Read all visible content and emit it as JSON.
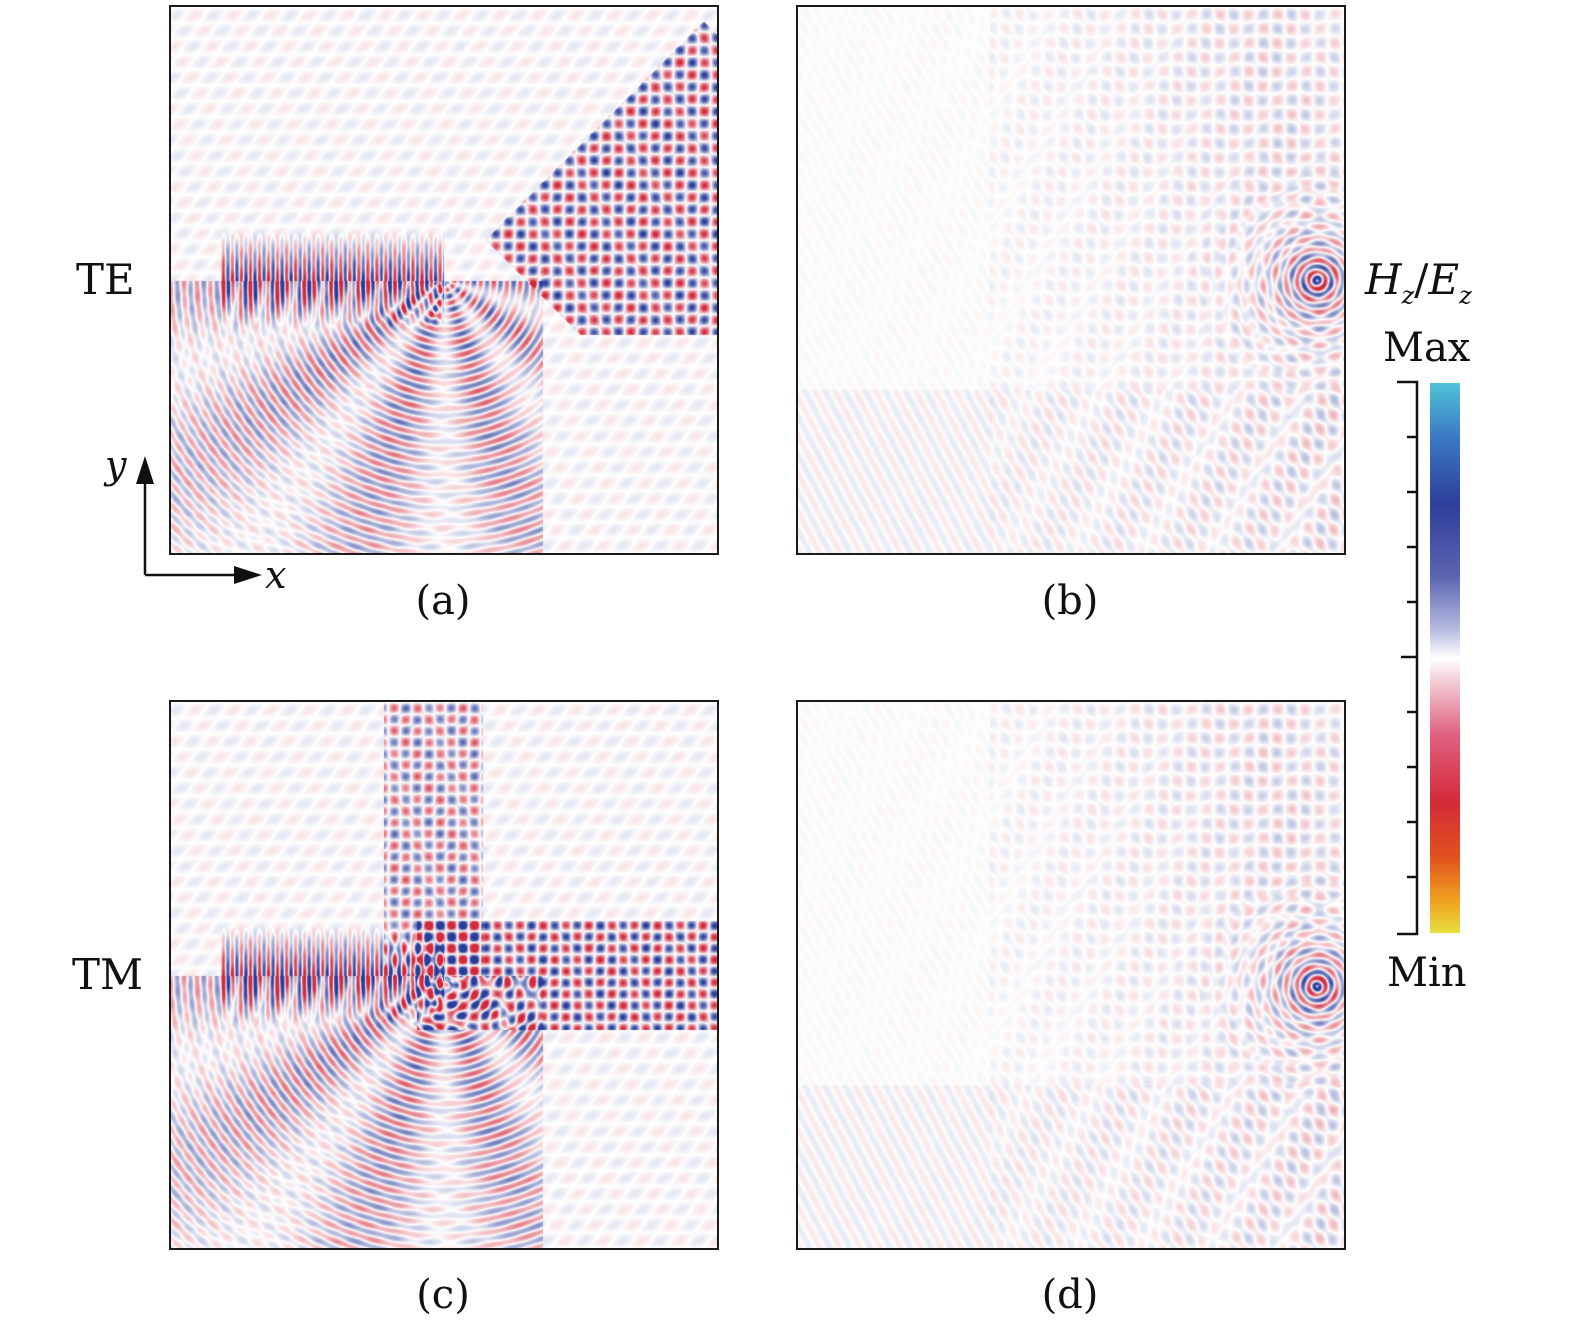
{
  "panels": [
    {
      "id": "a",
      "caption": "(a)",
      "mode": "TE",
      "pattern": "branch"
    },
    {
      "id": "b",
      "caption": "(b)",
      "mode": "TE",
      "pattern": "focus"
    },
    {
      "id": "c",
      "caption": "(c)",
      "mode": "TM",
      "pattern": "branch"
    },
    {
      "id": "d",
      "caption": "(d)",
      "mode": "TM",
      "pattern": "focus"
    }
  ],
  "row_labels": {
    "top": "TE",
    "bottom": "TM"
  },
  "colorbar": {
    "field_main_1": "H",
    "field_sub_1": "z",
    "separator": "/",
    "field_main_2": "E",
    "field_sub_2": "z",
    "max_label": "Max",
    "min_label": "Min",
    "colors": {
      "max": "#4fc4d8",
      "blue": "#2e3f9a",
      "zero": "#ffffff",
      "red": "#d42a3a",
      "min": "#e8e040"
    }
  },
  "axes": {
    "x_label": "x",
    "y_label": "y"
  }
}
